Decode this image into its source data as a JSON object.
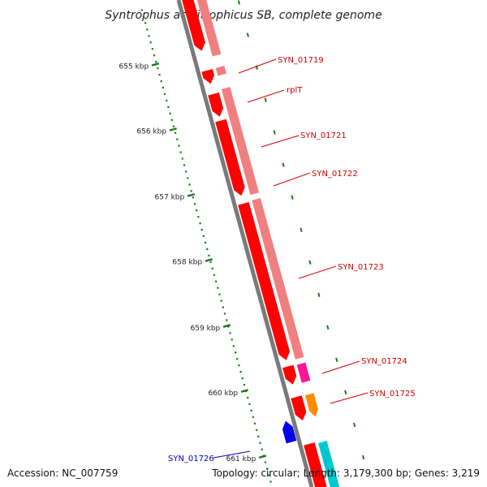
{
  "title": "Syntrophus aciditrophicus SB, complete genome",
  "footer": {
    "accession": "Accession: NC_007759",
    "summary": "Topology: circular; Length: 3,179,300 bp; Genes: 3,219"
  },
  "ticks": [
    "655 kbp",
    "656 kbp",
    "657 kbp",
    "658 kbp",
    "659 kbp",
    "660 kbp",
    "661 kbp"
  ],
  "colors": {
    "backbone": "#7a7a7a",
    "gene_forward": "#ff0000",
    "gene_forward_light": "#f08080",
    "gene_reverse": "#0000ee",
    "gene_magenta": "#ff1493",
    "gene_orange": "#ff8c00",
    "gene_cyan": "#00c8d0",
    "tick_mark": "#1a7a1a",
    "label_red": "#d00000",
    "label_blue": "#0000cc"
  },
  "gene_labels": [
    {
      "name": "SYN_01719",
      "color": "label_red"
    },
    {
      "name": "rplT",
      "color": "label_red"
    },
    {
      "name": "SYN_01721",
      "color": "label_red"
    },
    {
      "name": "SYN_01722",
      "color": "label_red"
    },
    {
      "name": "SYN_01723",
      "color": "label_red"
    },
    {
      "name": "SYN_01724",
      "color": "label_red"
    },
    {
      "name": "SYN_01725",
      "color": "label_red"
    },
    {
      "name": "SYN_01726",
      "color": "label_blue"
    }
  ]
}
